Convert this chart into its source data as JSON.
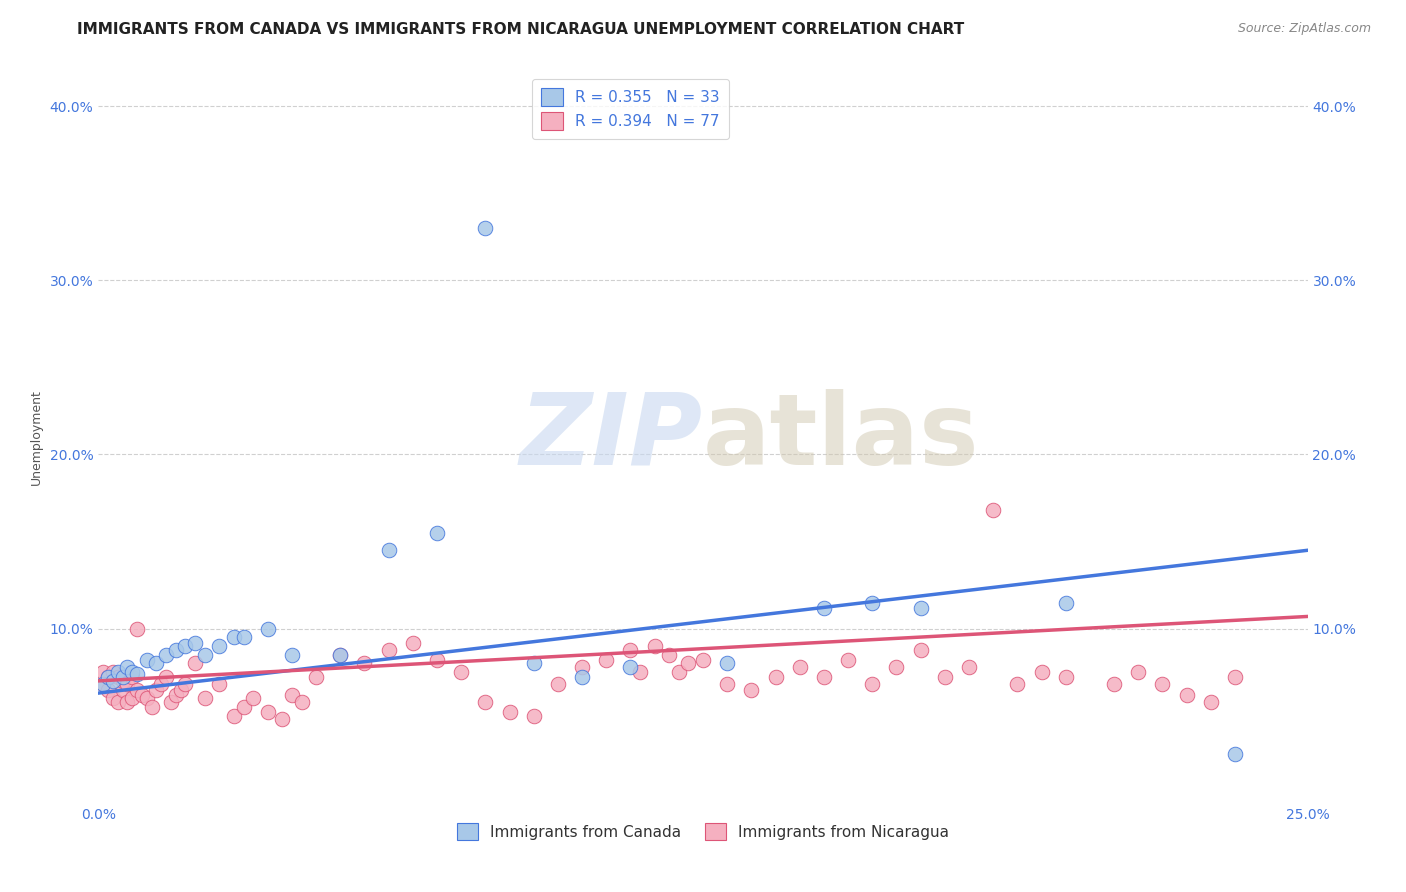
{
  "title": "IMMIGRANTS FROM CANADA VS IMMIGRANTS FROM NICARAGUA UNEMPLOYMENT CORRELATION CHART",
  "source": "Source: ZipAtlas.com",
  "ylabel": "Unemployment",
  "xlabel": "",
  "xlim": [
    0.0,
    0.25
  ],
  "ylim": [
    0.0,
    0.42
  ],
  "xticks": [
    0.0,
    0.25
  ],
  "xticklabels": [
    "0.0%",
    "25.0%"
  ],
  "yticks": [
    0.1,
    0.2,
    0.3,
    0.4
  ],
  "yticklabels": [
    "10.0%",
    "20.0%",
    "30.0%",
    "40.0%"
  ],
  "canada_color": "#a8c8e8",
  "nicaragua_color": "#f5b0c0",
  "canada_line_color": "#4477dd",
  "nicaragua_line_color": "#dd5577",
  "canada_R": 0.355,
  "canada_N": 33,
  "nicaragua_R": 0.394,
  "nicaragua_N": 77,
  "canada_x": [
    0.001,
    0.002,
    0.003,
    0.004,
    0.005,
    0.006,
    0.007,
    0.008,
    0.01,
    0.012,
    0.014,
    0.016,
    0.018,
    0.02,
    0.022,
    0.025,
    0.028,
    0.03,
    0.035,
    0.04,
    0.05,
    0.06,
    0.07,
    0.08,
    0.09,
    0.1,
    0.11,
    0.13,
    0.15,
    0.16,
    0.17,
    0.2,
    0.235
  ],
  "canada_y": [
    0.068,
    0.072,
    0.07,
    0.075,
    0.072,
    0.078,
    0.075,
    0.074,
    0.082,
    0.08,
    0.085,
    0.088,
    0.09,
    0.092,
    0.085,
    0.09,
    0.095,
    0.095,
    0.1,
    0.085,
    0.085,
    0.145,
    0.155,
    0.33,
    0.08,
    0.072,
    0.078,
    0.08,
    0.112,
    0.115,
    0.112,
    0.115,
    0.028
  ],
  "nicaragua_x": [
    0.001,
    0.001,
    0.002,
    0.002,
    0.003,
    0.003,
    0.004,
    0.004,
    0.005,
    0.005,
    0.006,
    0.006,
    0.007,
    0.007,
    0.008,
    0.008,
    0.009,
    0.01,
    0.011,
    0.012,
    0.013,
    0.014,
    0.015,
    0.016,
    0.017,
    0.018,
    0.02,
    0.022,
    0.025,
    0.028,
    0.03,
    0.032,
    0.035,
    0.038,
    0.04,
    0.042,
    0.045,
    0.05,
    0.055,
    0.06,
    0.065,
    0.07,
    0.075,
    0.08,
    0.085,
    0.09,
    0.095,
    0.1,
    0.105,
    0.11,
    0.112,
    0.115,
    0.118,
    0.12,
    0.122,
    0.125,
    0.13,
    0.135,
    0.14,
    0.145,
    0.15,
    0.155,
    0.16,
    0.165,
    0.17,
    0.175,
    0.18,
    0.185,
    0.19,
    0.195,
    0.2,
    0.21,
    0.215,
    0.22,
    0.225,
    0.23,
    0.235
  ],
  "nicaragua_y": [
    0.068,
    0.075,
    0.065,
    0.072,
    0.06,
    0.075,
    0.058,
    0.072,
    0.065,
    0.07,
    0.058,
    0.068,
    0.072,
    0.06,
    0.065,
    0.1,
    0.062,
    0.06,
    0.055,
    0.065,
    0.068,
    0.072,
    0.058,
    0.062,
    0.065,
    0.068,
    0.08,
    0.06,
    0.068,
    0.05,
    0.055,
    0.06,
    0.052,
    0.048,
    0.062,
    0.058,
    0.072,
    0.085,
    0.08,
    0.088,
    0.092,
    0.082,
    0.075,
    0.058,
    0.052,
    0.05,
    0.068,
    0.078,
    0.082,
    0.088,
    0.075,
    0.09,
    0.085,
    0.075,
    0.08,
    0.082,
    0.068,
    0.065,
    0.072,
    0.078,
    0.072,
    0.082,
    0.068,
    0.078,
    0.088,
    0.072,
    0.078,
    0.168,
    0.068,
    0.075,
    0.072,
    0.068,
    0.075,
    0.068,
    0.062,
    0.058,
    0.072
  ],
  "watermark_zip": "ZIP",
  "watermark_atlas": "atlas",
  "background_color": "#ffffff",
  "grid_color": "#d0d0d0",
  "title_fontsize": 11,
  "axis_label_fontsize": 9,
  "tick_fontsize": 10,
  "legend_fontsize": 11
}
